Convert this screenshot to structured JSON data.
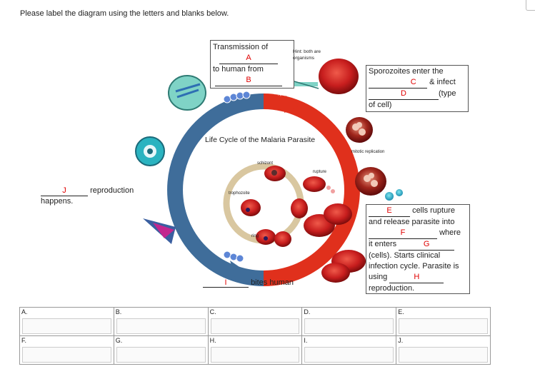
{
  "instruction": "Please label the diagram using the letters and blanks below.",
  "transmission": {
    "line1": "Transmission of",
    "letter_a": "A",
    "line2": "to human from",
    "letter_b": "B"
  },
  "hint": {
    "line1": "Hint: both are",
    "line2": "organisms"
  },
  "sporozoites": {
    "line1": "Sporozoites enter the",
    "letter_c": "C",
    "after_c": "& infect",
    "letter_d": "D",
    "after_d": "(type",
    "line3": "of cell)"
  },
  "cycle": {
    "title": "Life Cycle of the Malaria Parasite",
    "human_top": "HUMAN",
    "human_bottom": "HUMAN",
    "schizont": "schizont",
    "rupture": "rupture",
    "trophozoite": "trophozoite",
    "ring": "ring",
    "mitotic": "mitotic replication"
  },
  "reproduction": {
    "letter_j": "J",
    "text": "reproduction",
    "line2": "happens."
  },
  "bites": {
    "letter_i": "I",
    "text": "bites human"
  },
  "cells_rupture": {
    "letter_e": "E",
    "after_e": "cells rupture",
    "line2": "and release parasite into",
    "letter_f": "F",
    "after_f": "where",
    "line4": "it enters",
    "letter_g": "G",
    "line5": "(cells). Starts clinical",
    "line6": "infection cycle. Parasite is",
    "line7": "using",
    "letter_h": "H",
    "line8": "reproduction."
  },
  "answers": {
    "row1": [
      "A.",
      "B.",
      "C.",
      "D.",
      "E."
    ],
    "row2": [
      "F.",
      "G.",
      "H.",
      "I.",
      "J."
    ]
  },
  "colors": {
    "ring_blue": "#3f6d9a",
    "ring_red": "#e0301c",
    "label_red": "#e00000",
    "rbc": "#c81e1e",
    "inner_ring": "#d9c7a0"
  }
}
